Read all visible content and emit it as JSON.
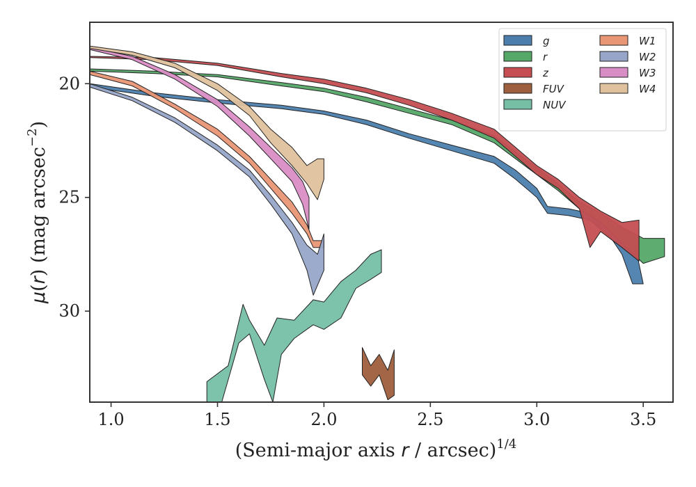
{
  "chart_data": {
    "type": "area",
    "xlabel": "(Semi-major axis r / arcsec)¹ᐟ⁴",
    "xlabel_parts": {
      "prefix": "(Semi-major axis ",
      "var": "r",
      "suffix": " / arcsec)",
      "exponent": "1/4"
    },
    "ylabel_parts": {
      "mu": "μ",
      "paren_open": "(",
      "var": "r",
      "rest": ") (mag arcsec",
      "exponent": "−2",
      "close": ")"
    },
    "xlim": [
      0.9,
      3.64
    ],
    "ylim": [
      34.0,
      17.3
    ],
    "y_inverted": true,
    "xticks": [
      1.0,
      1.5,
      2.0,
      2.5,
      3.0,
      3.5
    ],
    "xtick_labels": [
      "1.0",
      "1.5",
      "2.0",
      "2.5",
      "3.0",
      "3.5"
    ],
    "yticks": [
      20,
      25,
      30
    ],
    "ytick_labels": [
      "20",
      "25",
      "30"
    ],
    "grid": false,
    "legend_position": "top-right",
    "legend_columns": 2,
    "series": [
      {
        "name": "g",
        "color": "#4c7ead",
        "upper": [
          [
            0.9,
            20.0
          ],
          [
            1.2,
            20.4
          ],
          [
            1.5,
            20.7
          ],
          [
            1.8,
            20.95
          ],
          [
            2.0,
            21.2
          ],
          [
            2.2,
            21.6
          ],
          [
            2.4,
            22.2
          ],
          [
            2.6,
            22.7
          ],
          [
            2.8,
            23.2
          ],
          [
            2.9,
            23.8
          ],
          [
            3.0,
            24.6
          ],
          [
            3.05,
            25.4
          ],
          [
            3.15,
            25.5
          ],
          [
            3.25,
            25.7
          ],
          [
            3.35,
            26.2
          ],
          [
            3.45,
            26.6
          ]
        ],
        "lower": [
          [
            0.9,
            20.15
          ],
          [
            1.2,
            20.55
          ],
          [
            1.5,
            20.85
          ],
          [
            1.8,
            21.1
          ],
          [
            2.0,
            21.35
          ],
          [
            2.2,
            21.8
          ],
          [
            2.4,
            22.4
          ],
          [
            2.6,
            22.95
          ],
          [
            2.8,
            23.5
          ],
          [
            2.9,
            24.2
          ],
          [
            3.0,
            25.0
          ],
          [
            3.05,
            25.7
          ],
          [
            3.15,
            25.8
          ],
          [
            3.25,
            26.0
          ],
          [
            3.35,
            26.8
          ],
          [
            3.4,
            27.5
          ],
          [
            3.45,
            28.8
          ],
          [
            3.5,
            28.8
          ]
        ]
      },
      {
        "name": "r",
        "color": "#55a868",
        "upper": [
          [
            0.9,
            19.35
          ],
          [
            1.2,
            19.45
          ],
          [
            1.5,
            19.6
          ],
          [
            1.8,
            19.95
          ],
          [
            2.0,
            20.2
          ],
          [
            2.2,
            20.6
          ],
          [
            2.4,
            21.1
          ],
          [
            2.6,
            21.6
          ],
          [
            2.8,
            22.3
          ],
          [
            2.9,
            23.0
          ],
          [
            3.0,
            23.7
          ],
          [
            3.1,
            24.4
          ],
          [
            3.2,
            25.2
          ],
          [
            3.3,
            25.7
          ],
          [
            3.4,
            26.3
          ],
          [
            3.5,
            26.8
          ],
          [
            3.6,
            26.8
          ]
        ],
        "lower": [
          [
            0.9,
            19.45
          ],
          [
            1.2,
            19.55
          ],
          [
            1.5,
            19.7
          ],
          [
            1.8,
            20.1
          ],
          [
            2.0,
            20.35
          ],
          [
            2.2,
            20.8
          ],
          [
            2.4,
            21.3
          ],
          [
            2.6,
            21.8
          ],
          [
            2.8,
            22.6
          ],
          [
            2.9,
            23.3
          ],
          [
            3.0,
            24.0
          ],
          [
            3.1,
            24.7
          ],
          [
            3.2,
            25.5
          ],
          [
            3.3,
            26.1
          ],
          [
            3.4,
            27.0
          ],
          [
            3.5,
            27.9
          ],
          [
            3.6,
            27.6
          ]
        ]
      },
      {
        "name": "z",
        "color": "#c44e52",
        "upper": [
          [
            0.9,
            18.8
          ],
          [
            1.2,
            18.85
          ],
          [
            1.5,
            19.1
          ],
          [
            1.8,
            19.55
          ],
          [
            2.0,
            19.8
          ],
          [
            2.2,
            20.2
          ],
          [
            2.4,
            20.7
          ],
          [
            2.6,
            21.3
          ],
          [
            2.8,
            22.0
          ],
          [
            2.9,
            22.8
          ],
          [
            3.0,
            23.6
          ],
          [
            3.1,
            24.2
          ],
          [
            3.2,
            25.0
          ],
          [
            3.3,
            25.6
          ],
          [
            3.4,
            26.1
          ],
          [
            3.48,
            26.0
          ]
        ],
        "lower": [
          [
            0.9,
            18.85
          ],
          [
            1.2,
            18.95
          ],
          [
            1.5,
            19.2
          ],
          [
            1.8,
            19.7
          ],
          [
            2.0,
            20.0
          ],
          [
            2.2,
            20.4
          ],
          [
            2.4,
            20.95
          ],
          [
            2.6,
            21.6
          ],
          [
            2.8,
            22.4
          ],
          [
            2.9,
            23.2
          ],
          [
            3.0,
            24.0
          ],
          [
            3.1,
            24.6
          ],
          [
            3.2,
            25.5
          ],
          [
            3.25,
            27.2
          ],
          [
            3.3,
            26.5
          ],
          [
            3.4,
            27.2
          ],
          [
            3.48,
            27.8
          ]
        ]
      },
      {
        "name": "FUV",
        "color": "#9e5f3e",
        "upper": [
          [
            2.18,
            31.6
          ],
          [
            2.22,
            32.4
          ],
          [
            2.26,
            31.9
          ],
          [
            2.3,
            32.6
          ],
          [
            2.33,
            31.7
          ]
        ],
        "lower": [
          [
            2.18,
            32.8
          ],
          [
            2.22,
            33.3
          ],
          [
            2.26,
            32.8
          ],
          [
            2.3,
            33.9
          ],
          [
            2.33,
            33.7
          ]
        ]
      },
      {
        "name": "NUV",
        "color": "#76bfa5",
        "upper": [
          [
            1.45,
            33.1
          ],
          [
            1.55,
            32.4
          ],
          [
            1.62,
            29.7
          ],
          [
            1.65,
            30.4
          ],
          [
            1.72,
            31.5
          ],
          [
            1.78,
            30.3
          ],
          [
            1.86,
            30.4
          ],
          [
            1.95,
            29.5
          ],
          [
            2.0,
            29.6
          ],
          [
            2.08,
            28.7
          ],
          [
            2.15,
            28.2
          ],
          [
            2.22,
            27.5
          ],
          [
            2.27,
            27.3
          ]
        ],
        "lower": [
          [
            1.45,
            34.0
          ],
          [
            1.52,
            34.0
          ],
          [
            1.6,
            31.4
          ],
          [
            1.65,
            31.0
          ],
          [
            1.72,
            33.0
          ],
          [
            1.76,
            34.0
          ],
          [
            1.8,
            31.9
          ],
          [
            1.86,
            31.2
          ],
          [
            1.95,
            30.6
          ],
          [
            2.0,
            30.8
          ],
          [
            2.08,
            30.3
          ],
          [
            2.15,
            29.0
          ],
          [
            2.22,
            28.6
          ],
          [
            2.27,
            28.3
          ]
        ]
      },
      {
        "name": "W1",
        "color": "#e99675",
        "upper": [
          [
            0.9,
            19.45
          ],
          [
            1.1,
            19.9
          ],
          [
            1.3,
            20.9
          ],
          [
            1.5,
            22.0
          ],
          [
            1.65,
            23.2
          ],
          [
            1.75,
            24.2
          ],
          [
            1.85,
            25.2
          ],
          [
            1.92,
            26.2
          ],
          [
            1.95,
            26.9
          ],
          [
            2.0,
            26.9
          ]
        ],
        "lower": [
          [
            0.9,
            19.6
          ],
          [
            1.1,
            20.1
          ],
          [
            1.3,
            21.1
          ],
          [
            1.5,
            22.3
          ],
          [
            1.65,
            23.5
          ],
          [
            1.75,
            24.6
          ],
          [
            1.85,
            25.7
          ],
          [
            1.92,
            26.6
          ],
          [
            1.95,
            27.2
          ],
          [
            2.0,
            27.2
          ]
        ]
      },
      {
        "name": "W2",
        "color": "#97a5c8",
        "upper": [
          [
            0.9,
            20.0
          ],
          [
            1.1,
            20.6
          ],
          [
            1.3,
            21.5
          ],
          [
            1.5,
            22.7
          ],
          [
            1.65,
            23.8
          ],
          [
            1.75,
            24.9
          ],
          [
            1.85,
            26.1
          ],
          [
            1.92,
            27.1
          ],
          [
            1.97,
            27.5
          ],
          [
            2.0,
            26.6
          ]
        ],
        "lower": [
          [
            0.9,
            20.15
          ],
          [
            1.1,
            20.75
          ],
          [
            1.3,
            21.7
          ],
          [
            1.5,
            22.95
          ],
          [
            1.65,
            24.1
          ],
          [
            1.75,
            25.3
          ],
          [
            1.85,
            26.6
          ],
          [
            1.92,
            28.2
          ],
          [
            1.95,
            29.3
          ],
          [
            2.0,
            28.2
          ]
        ]
      },
      {
        "name": "W3",
        "color": "#d98dc5",
        "upper": [
          [
            0.9,
            18.4
          ],
          [
            1.1,
            18.8
          ],
          [
            1.3,
            19.6
          ],
          [
            1.5,
            20.7
          ],
          [
            1.65,
            21.9
          ],
          [
            1.75,
            22.8
          ],
          [
            1.85,
            23.7
          ],
          [
            1.9,
            24.3
          ],
          [
            1.93,
            25.0
          ]
        ],
        "lower": [
          [
            0.9,
            18.5
          ],
          [
            1.1,
            18.95
          ],
          [
            1.3,
            19.8
          ],
          [
            1.5,
            21.0
          ],
          [
            1.65,
            22.3
          ],
          [
            1.75,
            23.3
          ],
          [
            1.85,
            24.3
          ],
          [
            1.9,
            25.3
          ],
          [
            1.93,
            26.4
          ]
        ]
      },
      {
        "name": "W4",
        "color": "#dfc19d",
        "upper": [
          [
            0.9,
            18.35
          ],
          [
            1.1,
            18.6
          ],
          [
            1.3,
            19.1
          ],
          [
            1.5,
            20.0
          ],
          [
            1.65,
            21.0
          ],
          [
            1.75,
            22.0
          ],
          [
            1.85,
            22.8
          ],
          [
            1.92,
            23.6
          ],
          [
            1.97,
            23.3
          ],
          [
            2.0,
            23.3
          ]
        ],
        "lower": [
          [
            0.9,
            18.45
          ],
          [
            1.1,
            18.75
          ],
          [
            1.3,
            19.3
          ],
          [
            1.5,
            20.3
          ],
          [
            1.65,
            21.4
          ],
          [
            1.75,
            22.6
          ],
          [
            1.85,
            23.6
          ],
          [
            1.92,
            24.4
          ],
          [
            1.97,
            25.1
          ],
          [
            2.0,
            24.2
          ]
        ]
      }
    ]
  }
}
